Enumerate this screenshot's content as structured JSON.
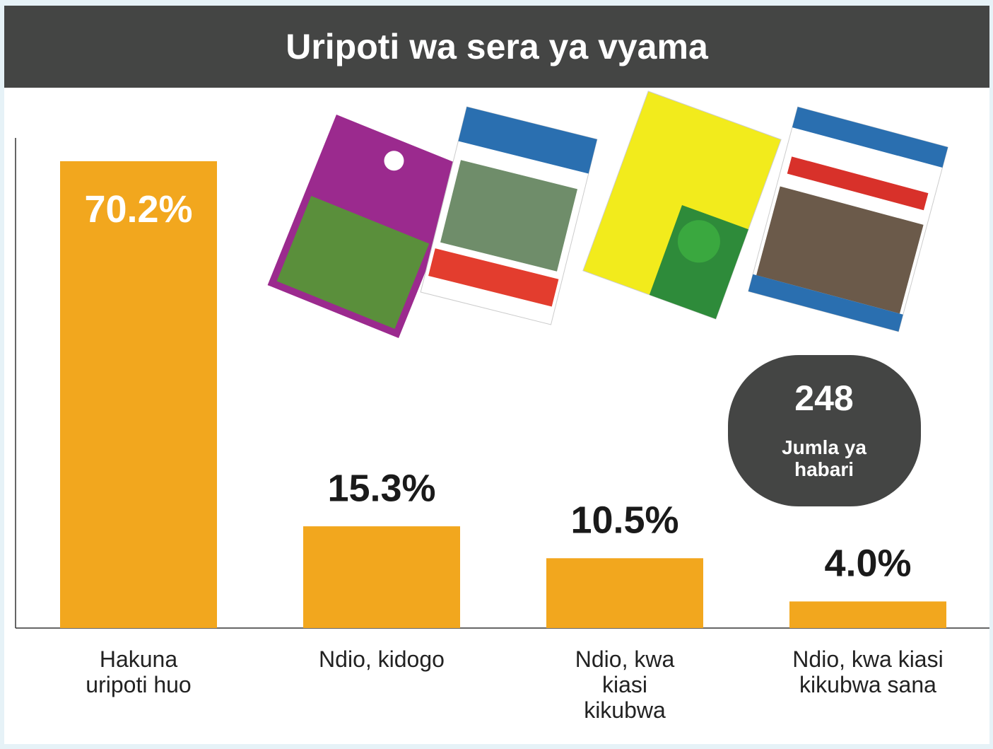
{
  "chart_data": {
    "type": "bar",
    "title": "Uripoti wa sera ya vyama",
    "categories": [
      "Hakuna uripoti huo",
      "Ndio, kidogo",
      "Ndio, kwa kiasi kikubwa",
      "Ndio, kwa kiasi kikubwa sana"
    ],
    "values": [
      70.2,
      15.3,
      10.5,
      4.0
    ],
    "value_labels": [
      "70.2%",
      "15.3%",
      "10.5%",
      "4.0%"
    ],
    "color": "#f2a71e",
    "ylim": [
      0,
      73.7
    ],
    "total": 248,
    "total_label": "Jumla ya habari"
  }
}
